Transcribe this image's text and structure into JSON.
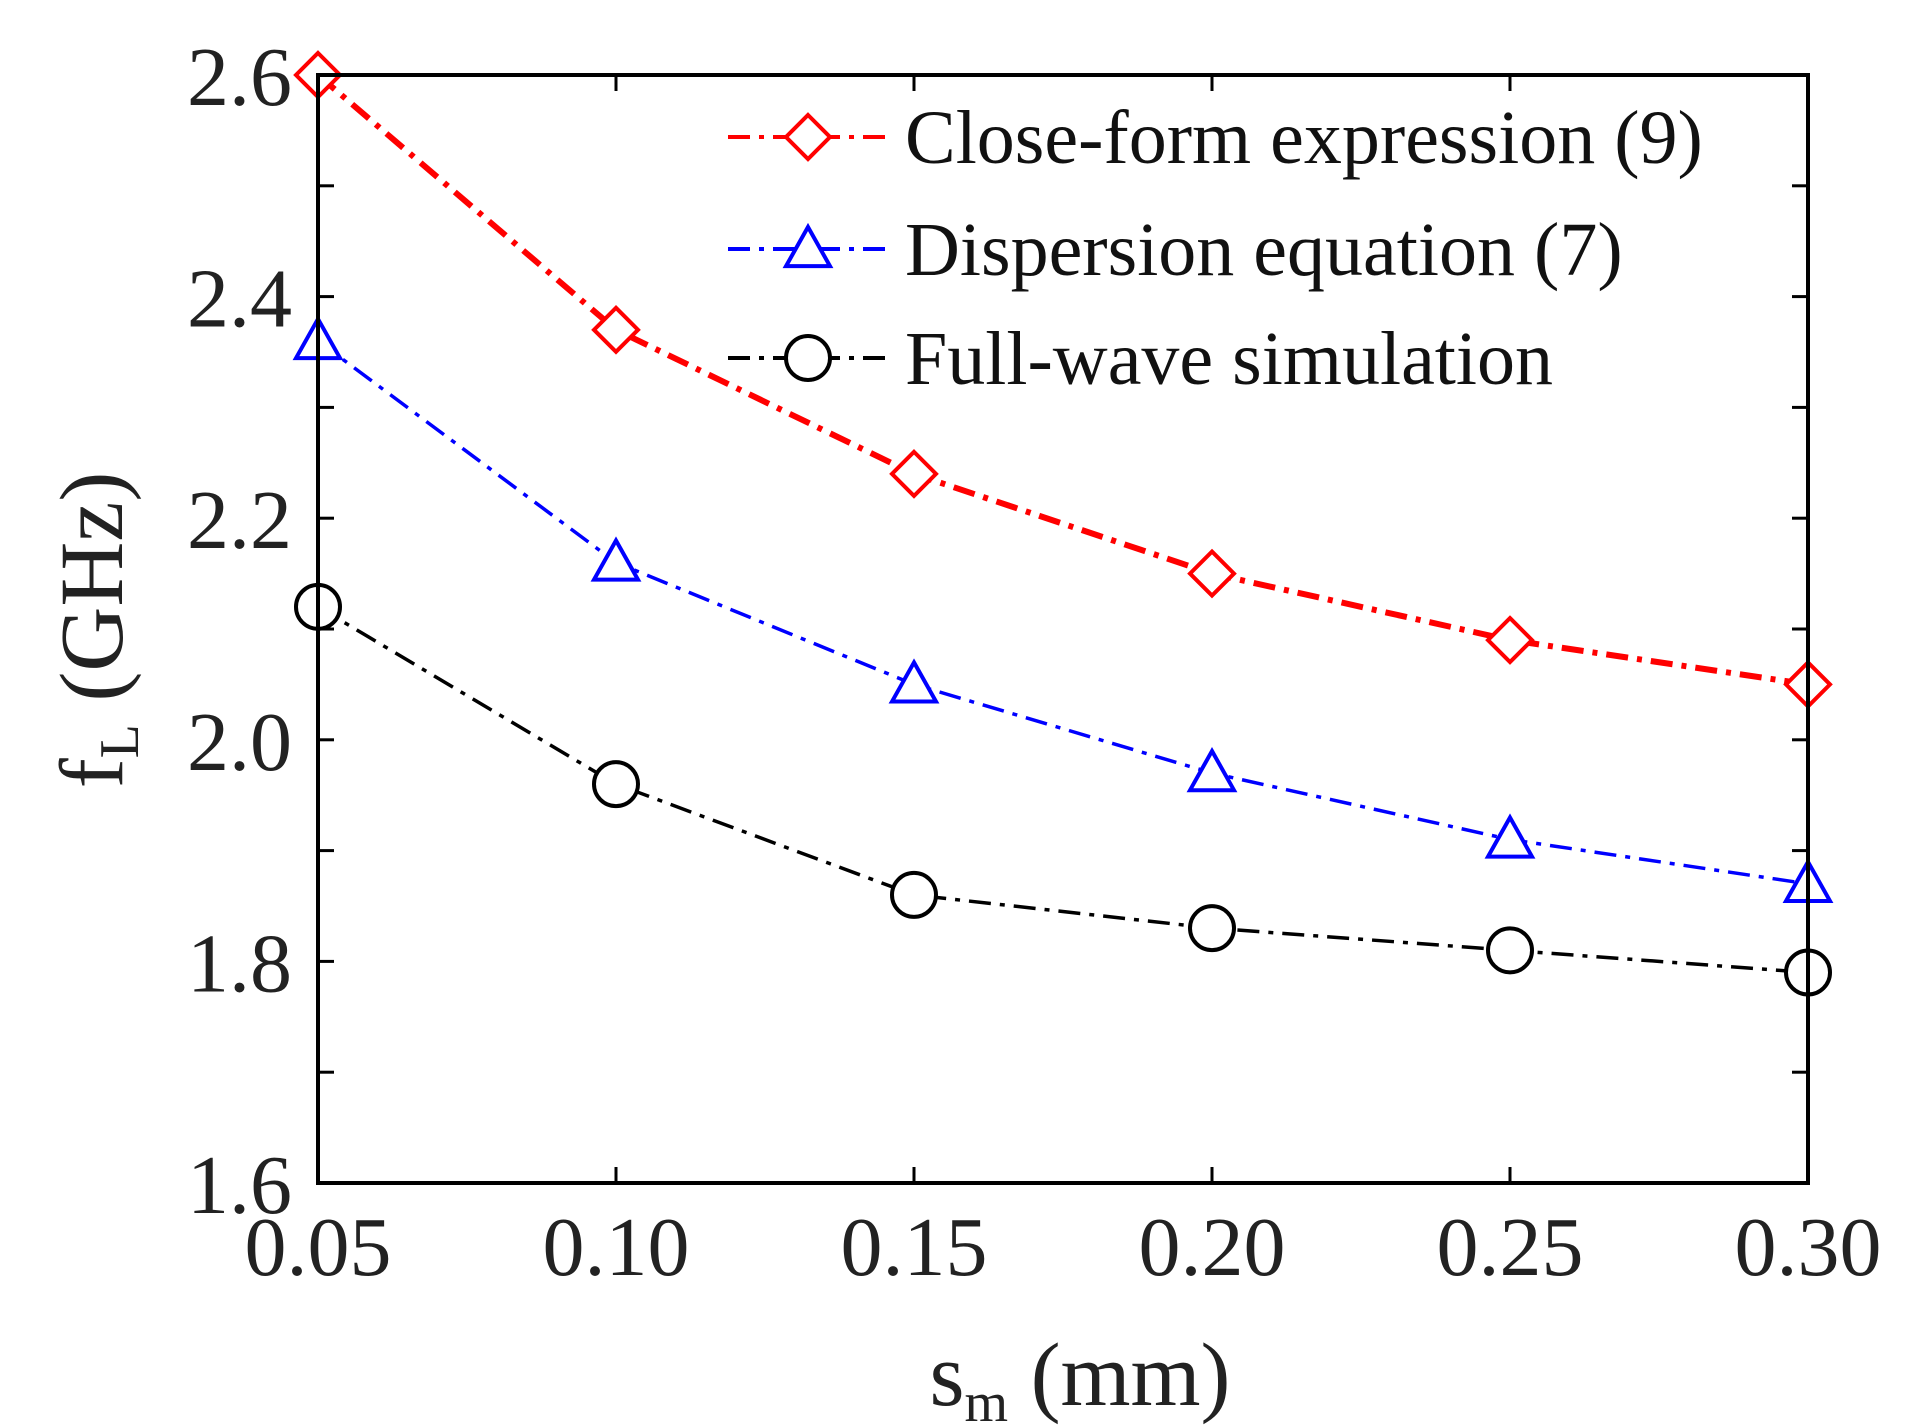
{
  "chart_data": {
    "type": "line",
    "title": "",
    "x": [
      0.05,
      0.1,
      0.15,
      0.2,
      0.25,
      0.3
    ],
    "x_tick_labels": [
      "0.05",
      "0.10",
      "0.15",
      "0.20",
      "0.25",
      "0.30"
    ],
    "xlim": [
      0.05,
      0.3
    ],
    "ylim": [
      1.6,
      2.6
    ],
    "y_ticks_labeled": [
      1.6,
      1.8,
      2.0,
      2.2,
      2.4,
      2.6
    ],
    "y_tick_labels": [
      "1.6",
      "1.8",
      "2.0",
      "2.2",
      "2.4",
      "2.6"
    ],
    "y_minor_ticks": [
      1.7,
      1.9,
      2.1,
      2.3,
      2.5
    ],
    "xlabel": {
      "main": "s",
      "sub": "m",
      "rest": " (mm)"
    },
    "ylabel": {
      "main": "f",
      "sub": "L",
      "rest": " (GHz)"
    },
    "grid": false,
    "legend_position": "top-right",
    "series": [
      {
        "name": "Close-form expression (9)",
        "color": "#ff0000",
        "marker": "diamond",
        "line_style": "dash-dot",
        "values": [
          2.6,
          2.37,
          2.24,
          2.15,
          2.09,
          2.05
        ]
      },
      {
        "name": "Dispersion equation (7)",
        "color": "#0000ff",
        "marker": "triangle",
        "line_style": "dash-dot",
        "values": [
          2.36,
          2.16,
          2.05,
          1.97,
          1.91,
          1.87
        ]
      },
      {
        "name": "Full-wave simulation",
        "color": "#000000",
        "marker": "circle",
        "line_style": "dash-dot",
        "values": [
          2.12,
          1.96,
          1.86,
          1.83,
          1.81,
          1.79
        ]
      }
    ]
  }
}
